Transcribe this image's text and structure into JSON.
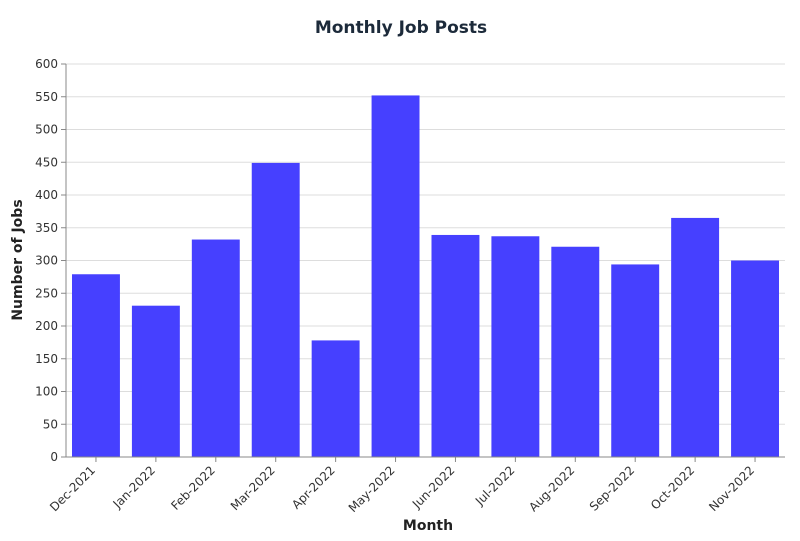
{
  "chart_data": {
    "type": "bar",
    "title": "Monthly Job Posts",
    "xlabel": "Month",
    "ylabel": "Number of Jobs",
    "categories": [
      "Dec-2021",
      "Jan-2022",
      "Feb-2022",
      "Mar-2022",
      "Apr-2022",
      "May-2022",
      "Jun-2022",
      "Jul-2022",
      "Aug-2022",
      "Sep-2022",
      "Oct-2022",
      "Nov-2022"
    ],
    "values": [
      279,
      231,
      332,
      449,
      178,
      552,
      339,
      337,
      321,
      294,
      365,
      300
    ],
    "ylim": [
      0,
      600
    ],
    "yticks": [
      0,
      50,
      100,
      150,
      200,
      250,
      300,
      350,
      400,
      450,
      500,
      550,
      600
    ],
    "grid": true,
    "bar_color": "#4640ff"
  }
}
